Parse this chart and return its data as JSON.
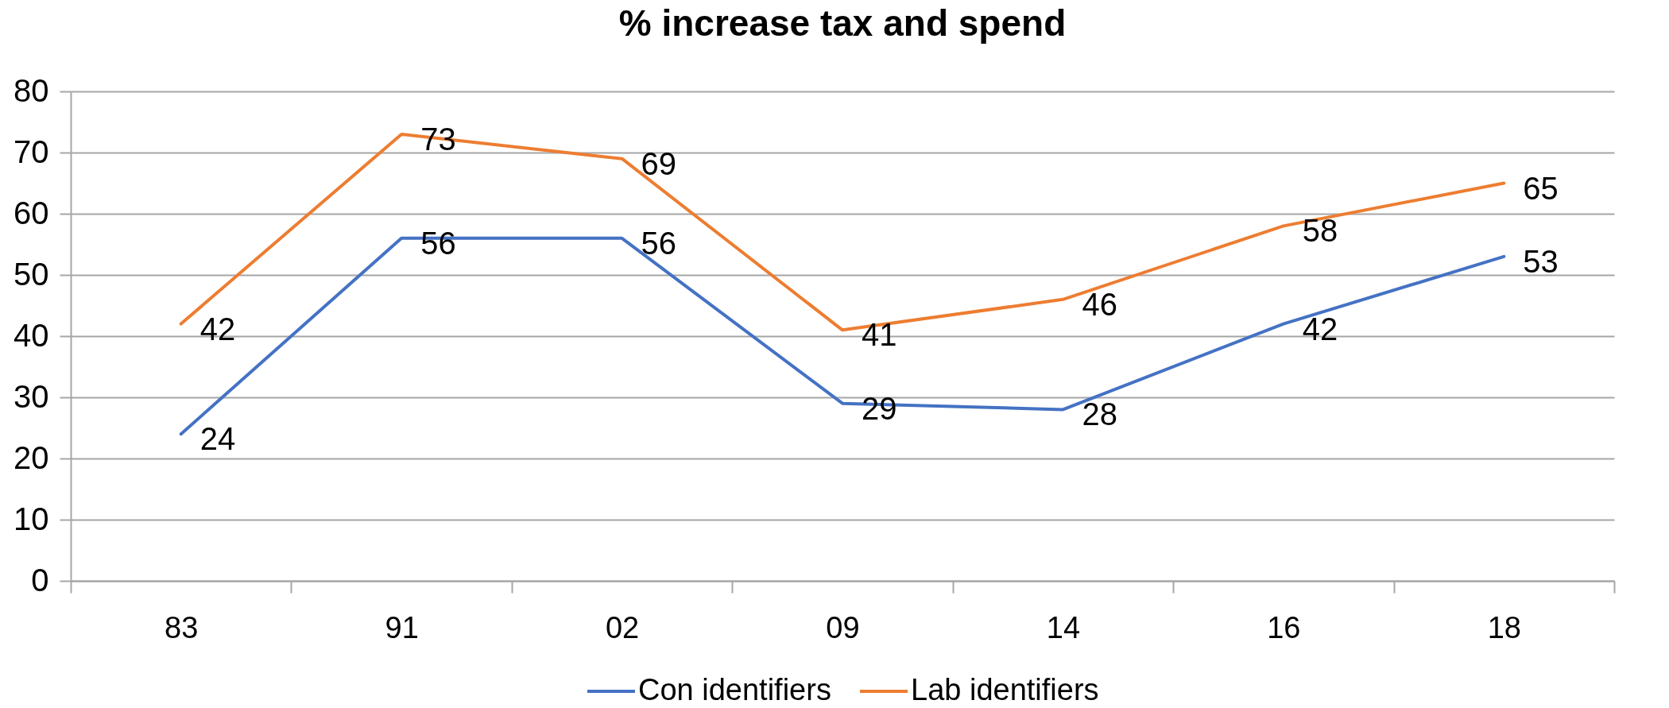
{
  "chart_data": {
    "type": "line",
    "title": "% increase tax and spend",
    "categories": [
      "83",
      "91",
      "02",
      "09",
      "14",
      "16",
      "18"
    ],
    "series": [
      {
        "name": "Con identifiers",
        "color": "#4472c4",
        "values": [
          24,
          56,
          56,
          29,
          28,
          42,
          53
        ]
      },
      {
        "name": "Lab identifiers",
        "color": "#ed7d31",
        "values": [
          42,
          73,
          69,
          41,
          46,
          58,
          65
        ]
      }
    ],
    "ylim": [
      0,
      80
    ],
    "yticks": [
      0,
      10,
      20,
      30,
      40,
      50,
      60,
      70,
      80
    ],
    "grid": "y",
    "legend": "bottom",
    "data_labels": true
  }
}
